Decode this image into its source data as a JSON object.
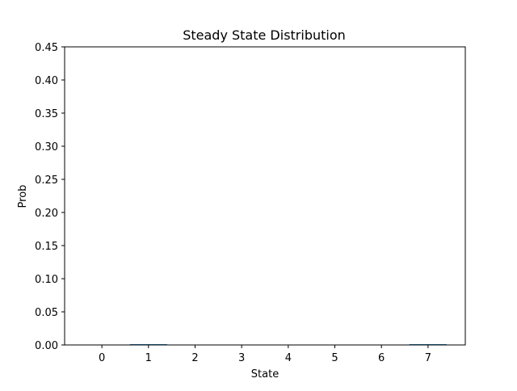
{
  "chart_data": {
    "type": "bar",
    "title": "Steady State Distribution",
    "xlabel": "State",
    "ylabel": "Prob",
    "categories": [
      "0",
      "1",
      "2",
      "3",
      "4",
      "5",
      "6",
      "7"
    ],
    "values": [
      0.0,
      0.001,
      0.0,
      0.0,
      0.0,
      0.0,
      0.0,
      0.001
    ],
    "ylim": [
      0,
      0.45
    ],
    "xlim": [
      -0.8,
      7.8
    ],
    "yticks": [
      "0.00",
      "0.05",
      "0.10",
      "0.15",
      "0.20",
      "0.25",
      "0.30",
      "0.35",
      "0.40",
      "0.45"
    ],
    "bar_color": "#1f77b4",
    "grid": false
  }
}
